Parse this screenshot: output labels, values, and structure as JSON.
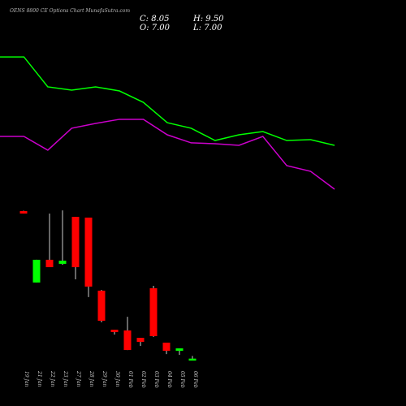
{
  "chart_data": [
    {
      "type": "candlestick",
      "title": "OENS 8800 CE Options Chart MunafaSutra.com",
      "annotations": [
        "C: 8.05",
        "H: 9.50",
        "O: 7.00",
        "L: 7.00"
      ],
      "x": [
        "19 Jan",
        "21 Jan",
        "22 Jan",
        "23 Jan",
        "27 Jan",
        "28 Jan",
        "29 Jan",
        "30 Jan",
        "01 Feb",
        "02 Feb",
        "03 Feb",
        "04 Feb",
        "05 Feb",
        "06 Feb"
      ],
      "open": [
        87.8,
        49.2,
        61.5,
        59.3,
        84.7,
        84.3,
        44.8,
        23.7,
        23.3,
        19.3,
        46.1,
        16.7,
        12.3,
        7.0
      ],
      "high": [
        88,
        61.5,
        86.5,
        88.2,
        84.7,
        84.3,
        45.2,
        23.7,
        30.7,
        19.3,
        47.4,
        16.7,
        13.6,
        9.5
      ],
      "low": [
        86.5,
        49.2,
        57.5,
        58.8,
        50.9,
        41.3,
        27.7,
        21.1,
        12.7,
        14.9,
        19.8,
        10.5,
        10.1,
        7.0
      ],
      "close": [
        86.5,
        61.5,
        57.5,
        61,
        57.5,
        47,
        28.5,
        22.4,
        12.7,
        17.1,
        20.2,
        12.3,
        13.6,
        8.05
      ],
      "up_color": "#00ff00",
      "down_color": "#ff0000",
      "ylim": [
        0,
        90
      ]
    },
    {
      "type": "line",
      "ylim": [
        0,
        100
      ],
      "series": [
        {
          "color": "#00ff00",
          "values": [
            94.4,
            94.4,
            73.9,
            71.7,
            73.9,
            71.1,
            63.3,
            49.4,
            45.6,
            37.2,
            41.1,
            43.3,
            37.2,
            37.8,
            33.9
          ]
        },
        {
          "color": "#cc00cc",
          "values": [
            40,
            40,
            30.6,
            45.6,
            48.9,
            51.7,
            51.7,
            41.1,
            35.6,
            35,
            33.9,
            40,
            20,
            16.1,
            3.9
          ]
        }
      ]
    }
  ]
}
